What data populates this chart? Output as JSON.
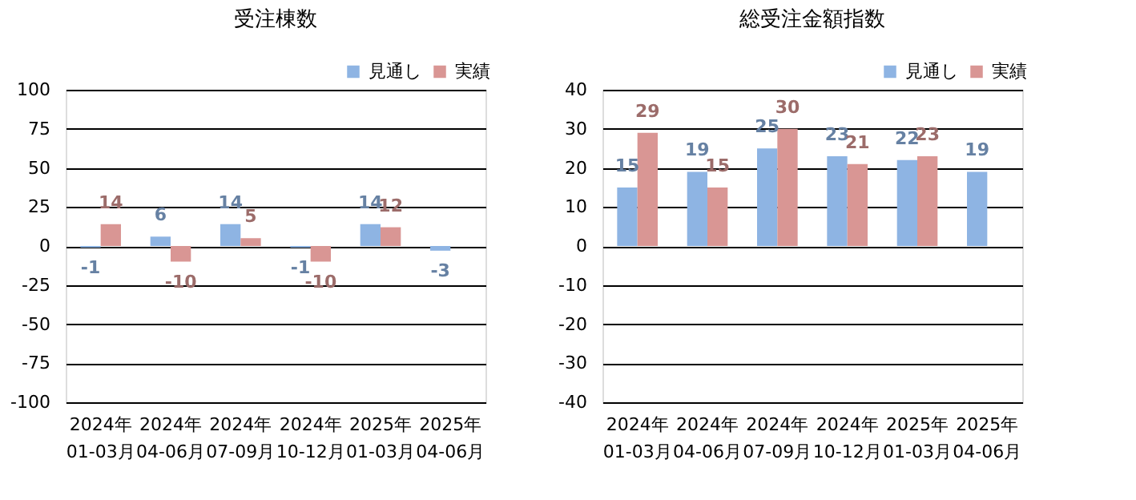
{
  "chart_data": [
    {
      "type": "bar",
      "title": "受注棟数",
      "categories": [
        "2024年\n01-03月",
        "2024年\n04-06月",
        "2024年\n07-09月",
        "2024年\n10-12月",
        "2025年\n01-03月",
        "2025年\n04-06月"
      ],
      "series": [
        {
          "name": "見通し",
          "color": "#8eb4e3",
          "values": [
            -1,
            6,
            14,
            -1,
            14,
            -3
          ]
        },
        {
          "name": "実績",
          "color": "#d99694",
          "values": [
            14,
            -10,
            5,
            -10,
            12,
            null
          ]
        }
      ],
      "ylim": [
        -100,
        100
      ],
      "yticks": [
        -100,
        -75,
        -50,
        -25,
        0,
        25,
        50,
        75,
        100
      ],
      "grid": "y",
      "legend": "top right",
      "data_labels": true
    },
    {
      "type": "bar",
      "title": "総受注金額指数",
      "categories": [
        "2024年\n01-03月",
        "2024年\n04-06月",
        "2024年\n07-09月",
        "2024年\n10-12月",
        "2025年\n01-03月",
        "2025年\n04-06月"
      ],
      "series": [
        {
          "name": "見通し",
          "color": "#8eb4e3",
          "values": [
            15,
            19,
            25,
            23,
            22,
            19
          ]
        },
        {
          "name": "実績",
          "color": "#d99694",
          "values": [
            29,
            15,
            30,
            21,
            23,
            null
          ]
        }
      ],
      "ylim": [
        -40,
        40
      ],
      "yticks": [
        -40,
        -30,
        -20,
        -10,
        0,
        10,
        20,
        30,
        40
      ],
      "grid": "y",
      "legend": "top right",
      "data_labels": true
    }
  ]
}
